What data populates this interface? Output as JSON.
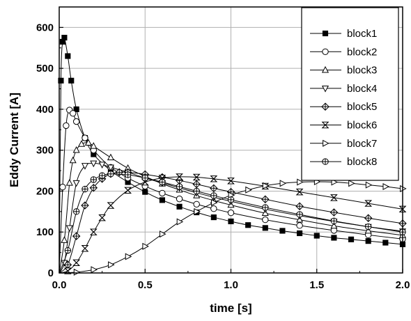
{
  "chart_data": {
    "type": "line",
    "xlabel": "time [s]",
    "ylabel": "Eddy Current [A]",
    "xlim": [
      0,
      2.0
    ],
    "ylim": [
      0,
      650
    ],
    "x_ticks": [
      0.0,
      0.5,
      1.0,
      1.5,
      2.0
    ],
    "x_tick_labels": [
      "0.0",
      "0.5",
      "1.0",
      "1.5",
      "2.0"
    ],
    "y_ticks": [
      0,
      100,
      200,
      300,
      400,
      500,
      600
    ],
    "y_tick_labels": [
      "0",
      "100",
      "200",
      "300",
      "400",
      "500",
      "600"
    ],
    "grid": true,
    "legend_position": "top-right",
    "series": [
      {
        "name": "block1",
        "marker": "filled-square",
        "x": [
          0,
          0.01,
          0.02,
          0.03,
          0.05,
          0.07,
          0.1,
          0.15,
          0.2,
          0.3,
          0.4,
          0.5,
          0.6,
          0.7,
          0.8,
          0.9,
          1.0,
          1.1,
          1.2,
          1.3,
          1.4,
          1.5,
          1.6,
          1.7,
          1.8,
          1.9,
          2.0
        ],
        "y": [
          0,
          470,
          565,
          575,
          530,
          470,
          400,
          330,
          290,
          250,
          222,
          198,
          178,
          162,
          148,
          136,
          126,
          117,
          110,
          103,
          97,
          91,
          86,
          82,
          78,
          74,
          70
        ]
      },
      {
        "name": "block2",
        "marker": "circle",
        "x": [
          0,
          0.02,
          0.04,
          0.06,
          0.08,
          0.1,
          0.15,
          0.2,
          0.3,
          0.4,
          0.5,
          0.6,
          0.7,
          0.8,
          0.9,
          1.0,
          1.2,
          1.4,
          1.6,
          1.8,
          2.0
        ],
        "y": [
          0,
          210,
          360,
          398,
          390,
          370,
          330,
          300,
          258,
          232,
          212,
          195,
          181,
          168,
          157,
          147,
          130,
          116,
          104,
          93,
          83
        ]
      },
      {
        "name": "block3",
        "marker": "triangle-up",
        "x": [
          0,
          0.03,
          0.06,
          0.08,
          0.1,
          0.13,
          0.17,
          0.2,
          0.3,
          0.4,
          0.5,
          0.6,
          0.7,
          0.8,
          0.9,
          1.0,
          1.2,
          1.4,
          1.6,
          1.8,
          2.0
        ],
        "y": [
          0,
          80,
          220,
          275,
          300,
          315,
          318,
          310,
          282,
          256,
          236,
          218,
          203,
          189,
          177,
          166,
          146,
          130,
          115,
          103,
          92
        ]
      },
      {
        "name": "block4",
        "marker": "triangle-down",
        "x": [
          0,
          0.03,
          0.06,
          0.1,
          0.15,
          0.2,
          0.25,
          0.3,
          0.4,
          0.5,
          0.6,
          0.7,
          0.8,
          0.9,
          1.0,
          1.2,
          1.4,
          1.6,
          1.8,
          2.0
        ],
        "y": [
          0,
          25,
          110,
          220,
          262,
          268,
          265,
          258,
          246,
          232,
          220,
          208,
          196,
          185,
          175,
          156,
          140,
          126,
          113,
          102
        ]
      },
      {
        "name": "block5",
        "marker": "diamond-cross",
        "x": [
          0,
          0.05,
          0.1,
          0.15,
          0.2,
          0.25,
          0.3,
          0.35,
          0.4,
          0.5,
          0.6,
          0.7,
          0.8,
          0.9,
          1.0,
          1.2,
          1.4,
          1.6,
          1.8,
          2.0
        ],
        "y": [
          0,
          20,
          90,
          165,
          208,
          230,
          242,
          246,
          246,
          241,
          234,
          226,
          217,
          207,
          198,
          180,
          163,
          148,
          134,
          121
        ]
      },
      {
        "name": "block6",
        "marker": "bowtie",
        "x": [
          0,
          0.05,
          0.1,
          0.15,
          0.2,
          0.25,
          0.3,
          0.4,
          0.5,
          0.6,
          0.7,
          0.8,
          0.9,
          1.0,
          1.2,
          1.4,
          1.6,
          1.8,
          2.0
        ],
        "y": [
          0,
          5,
          25,
          60,
          100,
          135,
          165,
          202,
          222,
          232,
          235,
          234,
          230,
          225,
          212,
          198,
          184,
          170,
          156
        ]
      },
      {
        "name": "block7",
        "marker": "triangle-right",
        "x": [
          0,
          0.1,
          0.2,
          0.3,
          0.4,
          0.5,
          0.6,
          0.7,
          0.8,
          0.9,
          1.0,
          1.1,
          1.2,
          1.3,
          1.4,
          1.5,
          1.6,
          1.7,
          1.8,
          1.9,
          2.0
        ],
        "y": [
          0,
          2,
          8,
          20,
          40,
          65,
          95,
          125,
          150,
          172,
          190,
          203,
          213,
          219,
          222,
          223,
          222,
          219,
          215,
          211,
          206
        ]
      },
      {
        "name": "block8",
        "marker": "circle-cross",
        "x": [
          0,
          0.05,
          0.1,
          0.15,
          0.2,
          0.25,
          0.3,
          0.4,
          0.5,
          0.6,
          0.7,
          0.8,
          0.9,
          1.0,
          1.2,
          1.4,
          1.6,
          1.8,
          2.0
        ],
        "y": [
          0,
          55,
          150,
          205,
          228,
          238,
          242,
          240,
          232,
          222,
          211,
          200,
          189,
          179,
          160,
          143,
          127,
          113,
          100
        ]
      }
    ]
  }
}
